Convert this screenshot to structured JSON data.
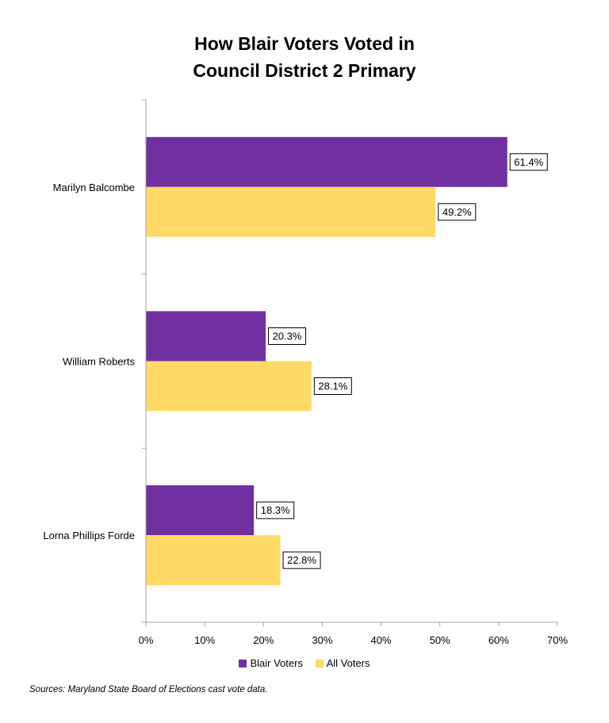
{
  "chart_data": {
    "type": "bar",
    "orientation": "horizontal",
    "title_lines": [
      "How Blair Voters Voted in",
      "Council District 2 Primary"
    ],
    "categories": [
      "Marilyn Balcombe",
      "William Roberts",
      "Lorna Phillips Forde"
    ],
    "series": [
      {
        "name": "Blair Voters",
        "color": "#7030a0",
        "values": [
          61.4,
          20.3,
          18.3
        ],
        "labels": [
          "61.4%",
          "20.3%",
          "18.3%"
        ]
      },
      {
        "name": "All Voters",
        "color": "#ffd966",
        "values": [
          49.2,
          28.1,
          22.8
        ],
        "labels": [
          "49.2%",
          "28.1%",
          "22.8%"
        ]
      }
    ],
    "xlim": [
      0,
      70
    ],
    "x_ticks": [
      "0%",
      "10%",
      "20%",
      "30%",
      "40%",
      "50%",
      "60%",
      "70%"
    ],
    "grid": false,
    "legend_position": "bottom"
  },
  "source_note": "Sources: Maryland State Board of Elections cast vote data."
}
